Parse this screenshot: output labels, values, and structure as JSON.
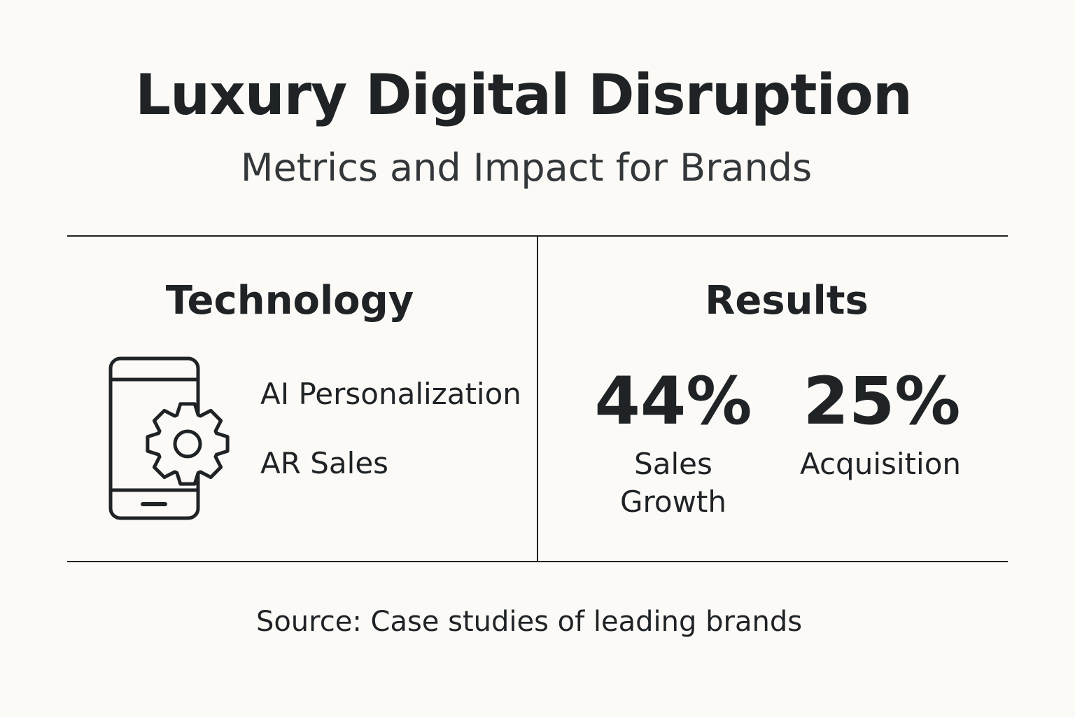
{
  "header": {
    "title": "Luxury Digital Disruption",
    "subtitle": "Metrics and Impact for Brands"
  },
  "technology": {
    "heading": "Technology",
    "items": [
      "AI Personalization",
      "AR Sales"
    ]
  },
  "results": {
    "heading": "Results",
    "stats": [
      {
        "value": "44%",
        "label": "Sales Growth"
      },
      {
        "value": "25%",
        "label": "Acquisition"
      }
    ]
  },
  "footer": {
    "source": "Source: Case studies of leading brands"
  }
}
